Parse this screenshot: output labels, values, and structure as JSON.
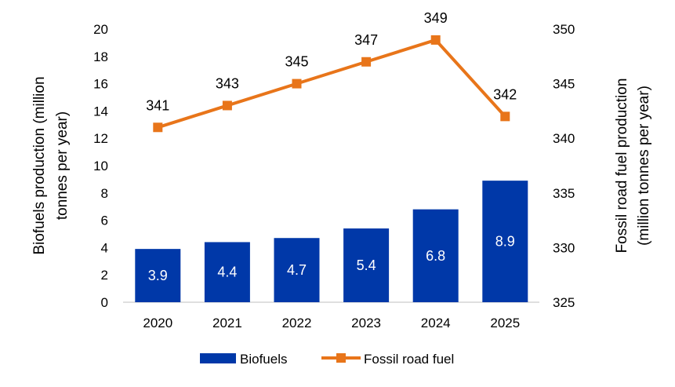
{
  "chart_data": {
    "type": "bar+line",
    "categories": [
      "2020",
      "2021",
      "2022",
      "2023",
      "2024",
      "2025"
    ],
    "series": [
      {
        "name": "Biofuels",
        "type": "bar",
        "axis": "left",
        "values": [
          3.9,
          4.4,
          4.7,
          5.4,
          6.8,
          8.9
        ],
        "labels": [
          "3.9",
          "4.4",
          "4.7",
          "5.4",
          "6.8",
          "8.9"
        ],
        "color": "#0038A8"
      },
      {
        "name": "Fossil road fuel",
        "type": "line",
        "axis": "right",
        "values": [
          341,
          343,
          345,
          347,
          349,
          342
        ],
        "labels": [
          "341",
          "343",
          "345",
          "347",
          "349",
          "342"
        ],
        "color": "#E8751A",
        "marker": "square"
      }
    ],
    "ylabel_left": [
      "Biofuels production (million",
      "tonnes per year)"
    ],
    "ylabel_right": [
      "Fossil road fuel production",
      "(million tonnes per year)"
    ],
    "ylim_left": [
      0,
      20
    ],
    "yticks_left": [
      "0",
      "2",
      "4",
      "6",
      "8",
      "10",
      "12",
      "14",
      "16",
      "18",
      "20"
    ],
    "ylim_right": [
      325,
      350
    ],
    "yticks_right": [
      "325",
      "330",
      "335",
      "340",
      "345",
      "350"
    ],
    "grid": false,
    "legend": "bottom"
  }
}
